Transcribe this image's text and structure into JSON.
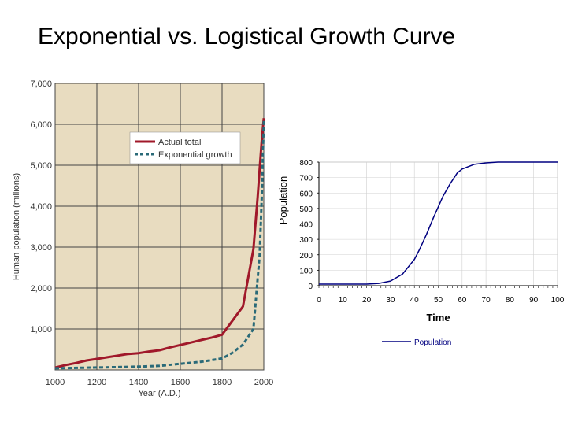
{
  "slide": {
    "title": "Exponential vs. Logistical Growth Curve"
  },
  "chart_data": [
    {
      "type": "line",
      "title": "",
      "xlabel": "Year (A.D.)",
      "ylabel": "Human population (millions)",
      "xlim": [
        1000,
        2000
      ],
      "ylim": [
        0,
        7000
      ],
      "x_ticks": [
        "1000",
        "1200",
        "1400",
        "1600",
        "1800",
        "2000"
      ],
      "x_tick_values": [
        1000,
        1200,
        1400,
        1600,
        1800,
        2000
      ],
      "y_ticks": [
        "1,000",
        "2,000",
        "3,000",
        "4,000",
        "5,000",
        "6,000",
        "7,000"
      ],
      "y_tick_values": [
        1000,
        2000,
        3000,
        4000,
        5000,
        6000,
        7000
      ],
      "grid": true,
      "background": "#e8dcc0",
      "legend": "top-right",
      "series": [
        {
          "name": "Actual total",
          "color": "#a0182a",
          "style": "solid",
          "x": [
            1000,
            1050,
            1100,
            1150,
            1200,
            1250,
            1300,
            1350,
            1400,
            1450,
            1500,
            1550,
            1600,
            1650,
            1700,
            1750,
            1800,
            1900,
            1950,
            1970,
            1980,
            1990,
            2000
          ],
          "y": [
            60,
            120,
            170,
            230,
            270,
            310,
            350,
            390,
            410,
            450,
            480,
            550,
            610,
            670,
            730,
            790,
            860,
            1550,
            2950,
            4200,
            4900,
            5600,
            6150
          ]
        },
        {
          "name": "Exponential growth",
          "color": "#2a6a78",
          "style": "dashed",
          "x": [
            1000,
            1100,
            1200,
            1300,
            1400,
            1500,
            1600,
            1700,
            1800,
            1850,
            1900,
            1950,
            1980,
            1990,
            2000
          ],
          "y": [
            40,
            50,
            60,
            70,
            80,
            100,
            150,
            200,
            280,
            420,
            620,
            1000,
            2800,
            4200,
            6100
          ]
        }
      ]
    },
    {
      "type": "line",
      "title": "",
      "xlabel": "Time",
      "ylabel": "Population",
      "xlim": [
        0,
        100
      ],
      "ylim": [
        0,
        800
      ],
      "x_ticks": [
        "0",
        "10",
        "20",
        "30",
        "40",
        "50",
        "60",
        "70",
        "80",
        "90",
        "100"
      ],
      "x_tick_values": [
        0,
        10,
        20,
        30,
        40,
        50,
        60,
        70,
        80,
        90,
        100
      ],
      "y_ticks": [
        "0",
        "100",
        "200",
        "300",
        "400",
        "500",
        "600",
        "700",
        "800"
      ],
      "y_tick_values": [
        0,
        100,
        200,
        300,
        400,
        500,
        600,
        700,
        800
      ],
      "grid": true,
      "legend": "bottom",
      "series": [
        {
          "name": "Population",
          "color": "#000080",
          "style": "solid",
          "x": [
            0,
            10,
            20,
            25,
            30,
            35,
            40,
            42,
            45,
            48,
            50,
            52,
            55,
            58,
            60,
            65,
            70,
            75,
            80,
            90,
            100
          ],
          "y": [
            10,
            10,
            10,
            15,
            30,
            75,
            170,
            230,
            330,
            440,
            510,
            580,
            660,
            730,
            755,
            785,
            795,
            800,
            800,
            800,
            800
          ]
        }
      ]
    }
  ]
}
